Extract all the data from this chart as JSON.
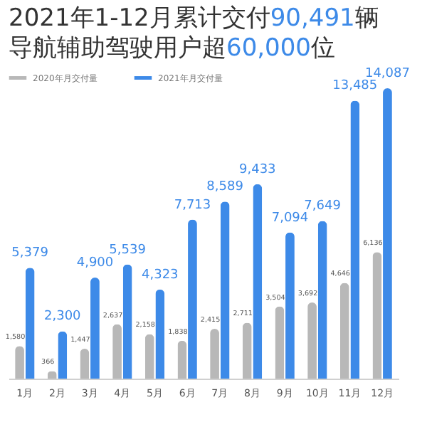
{
  "chart_data": {
    "type": "bar",
    "title": "2021年1-12月累计交付90,491辆",
    "subtitle": "导航辅助驾驶用户超60,000位",
    "categories": [
      "1月",
      "2月",
      "3月",
      "4月",
      "5月",
      "6月",
      "7月",
      "8月",
      "9月",
      "10月",
      "11月",
      "12月"
    ],
    "series": [
      {
        "name": "2020年月交付量",
        "color": "#b8b8b8",
        "values": [
          1580,
          366,
          1447,
          2637,
          2158,
          1838,
          2415,
          2711,
          3504,
          3692,
          4646,
          6136
        ],
        "value_labels": [
          "1,580",
          "366",
          "1,447",
          "2,637",
          "2,158",
          "1,838",
          "2,415",
          "2,711",
          "3,504",
          "3,692",
          "4,646",
          "6,136"
        ]
      },
      {
        "name": "2021年月交付量",
        "color": "#3d8ae8",
        "values": [
          5379,
          2300,
          4900,
          5539,
          4323,
          7713,
          8589,
          9433,
          7094,
          7649,
          13485,
          14087
        ],
        "value_labels": [
          "5,379",
          "2,300",
          "4,900",
          "5,539",
          "4,323",
          "7,713",
          "8,589",
          "9,433",
          "7,094",
          "7,649",
          "13,485",
          "14,087"
        ]
      }
    ],
    "legend": "top left",
    "grid": false
  }
}
